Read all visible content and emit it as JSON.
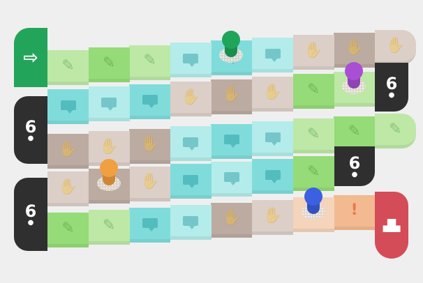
{
  "colors": {
    "pencil_light": "#bde8a6",
    "pencil": "#95db78",
    "chat_light": "#b3ecea",
    "chat": "#80dcdb",
    "hand_light": "#dbcfc8",
    "hand": "#bcaba1",
    "peach_light": "#f4d4bb",
    "peach": "#f3b990",
    "start": "#22a55b",
    "dice": "#2f2f2f",
    "finish": "#d34c57"
  },
  "start": {
    "icon": "arrow-right-icon",
    "glyph": "⇨"
  },
  "finish": {
    "icon": "podium-icon",
    "glyph": "▟▙"
  },
  "dice_label": "6",
  "rows": [
    [
      "pencil_light",
      "pencil",
      "pencil_light",
      "chat_light",
      "chat",
      "chat_light",
      "hand_light",
      "hand",
      "hand_light"
    ],
    [
      "chat",
      "chat_light",
      "chat",
      "hand_light",
      "hand",
      "hand_light",
      "pencil",
      "pencil_light"
    ],
    [
      "hand",
      "hand_light",
      "hand",
      "chat_light",
      "chat",
      "chat_light",
      "pencil_light",
      "pencil",
      "pencil_light"
    ],
    [
      "hand_light",
      "hand",
      "hand_light",
      "chat",
      "chat_light",
      "chat",
      "pencil"
    ],
    [
      "pencil",
      "pencil_light",
      "chat",
      "chat_light",
      "hand",
      "hand_light",
      "peach_light",
      "peach"
    ]
  ],
  "special": {
    "peach": "!"
  },
  "pawns": [
    {
      "name": "green",
      "color": "#1fa55a",
      "row": 1,
      "col": 5
    },
    {
      "name": "purple",
      "color": "#a84fd4",
      "row": 2,
      "col": 8
    },
    {
      "name": "orange",
      "color": "#f0a040",
      "row": 4,
      "col": 2
    },
    {
      "name": "blue",
      "color": "#3b60e2",
      "row": 5,
      "col": 7
    }
  ]
}
